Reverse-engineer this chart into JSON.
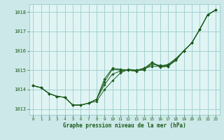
{
  "title": "Graphe pression niveau de la mer (hPa)",
  "fig_bg_color": "#cce8e8",
  "plot_bg_color": "#e0f4f4",
  "grid_color": "#99cccc",
  "line_color": "#1a5c1a",
  "marker_color": "#1a5c1a",
  "xlabel_color": "#1a5c1a",
  "xlabel_bg": "#99cccc",
  "ylim": [
    1012.7,
    1018.4
  ],
  "xlim": [
    -0.5,
    23.5
  ],
  "yticks": [
    1013,
    1014,
    1015,
    1016,
    1017,
    1018
  ],
  "xticks": [
    0,
    1,
    2,
    3,
    4,
    5,
    6,
    7,
    8,
    9,
    10,
    11,
    12,
    13,
    14,
    15,
    16,
    17,
    18,
    19,
    20,
    21,
    22,
    23
  ],
  "series": [
    [
      1014.2,
      1014.1,
      1013.8,
      1013.65,
      1013.6,
      1013.2,
      1013.2,
      1013.3,
      1013.4,
      1014.0,
      1014.45,
      1014.85,
      1015.05,
      1015.0,
      1015.1,
      1015.4,
      1015.2,
      1015.2,
      1015.55,
      1016.0,
      1016.4,
      1017.1,
      1017.85,
      1018.1
    ],
    [
      1014.2,
      1014.1,
      1013.8,
      1013.65,
      1013.6,
      1013.2,
      1013.2,
      1013.3,
      1013.5,
      1014.4,
      1015.05,
      1015.0,
      1015.0,
      1014.95,
      1015.05,
      1015.3,
      1015.25,
      1015.25,
      1015.55,
      1016.0,
      1016.4,
      1017.1,
      1017.85,
      1018.1
    ],
    [
      1014.2,
      1014.1,
      1013.8,
      1013.65,
      1013.6,
      1013.2,
      1013.2,
      1013.3,
      1013.5,
      1014.55,
      1015.1,
      1015.05,
      1015.0,
      1014.95,
      1015.1,
      1015.2,
      1015.2,
      1015.3,
      1015.6,
      1016.0,
      1016.4,
      1017.1,
      1017.85,
      1018.1
    ],
    [
      1014.2,
      1014.1,
      1013.8,
      1013.65,
      1013.6,
      1013.2,
      1013.2,
      1013.3,
      1013.5,
      1014.25,
      1014.8,
      1014.95,
      1015.0,
      1015.0,
      1015.0,
      1015.4,
      1015.15,
      1015.2,
      1015.5,
      1016.0,
      1016.4,
      1017.1,
      1017.85,
      1018.1
    ]
  ]
}
